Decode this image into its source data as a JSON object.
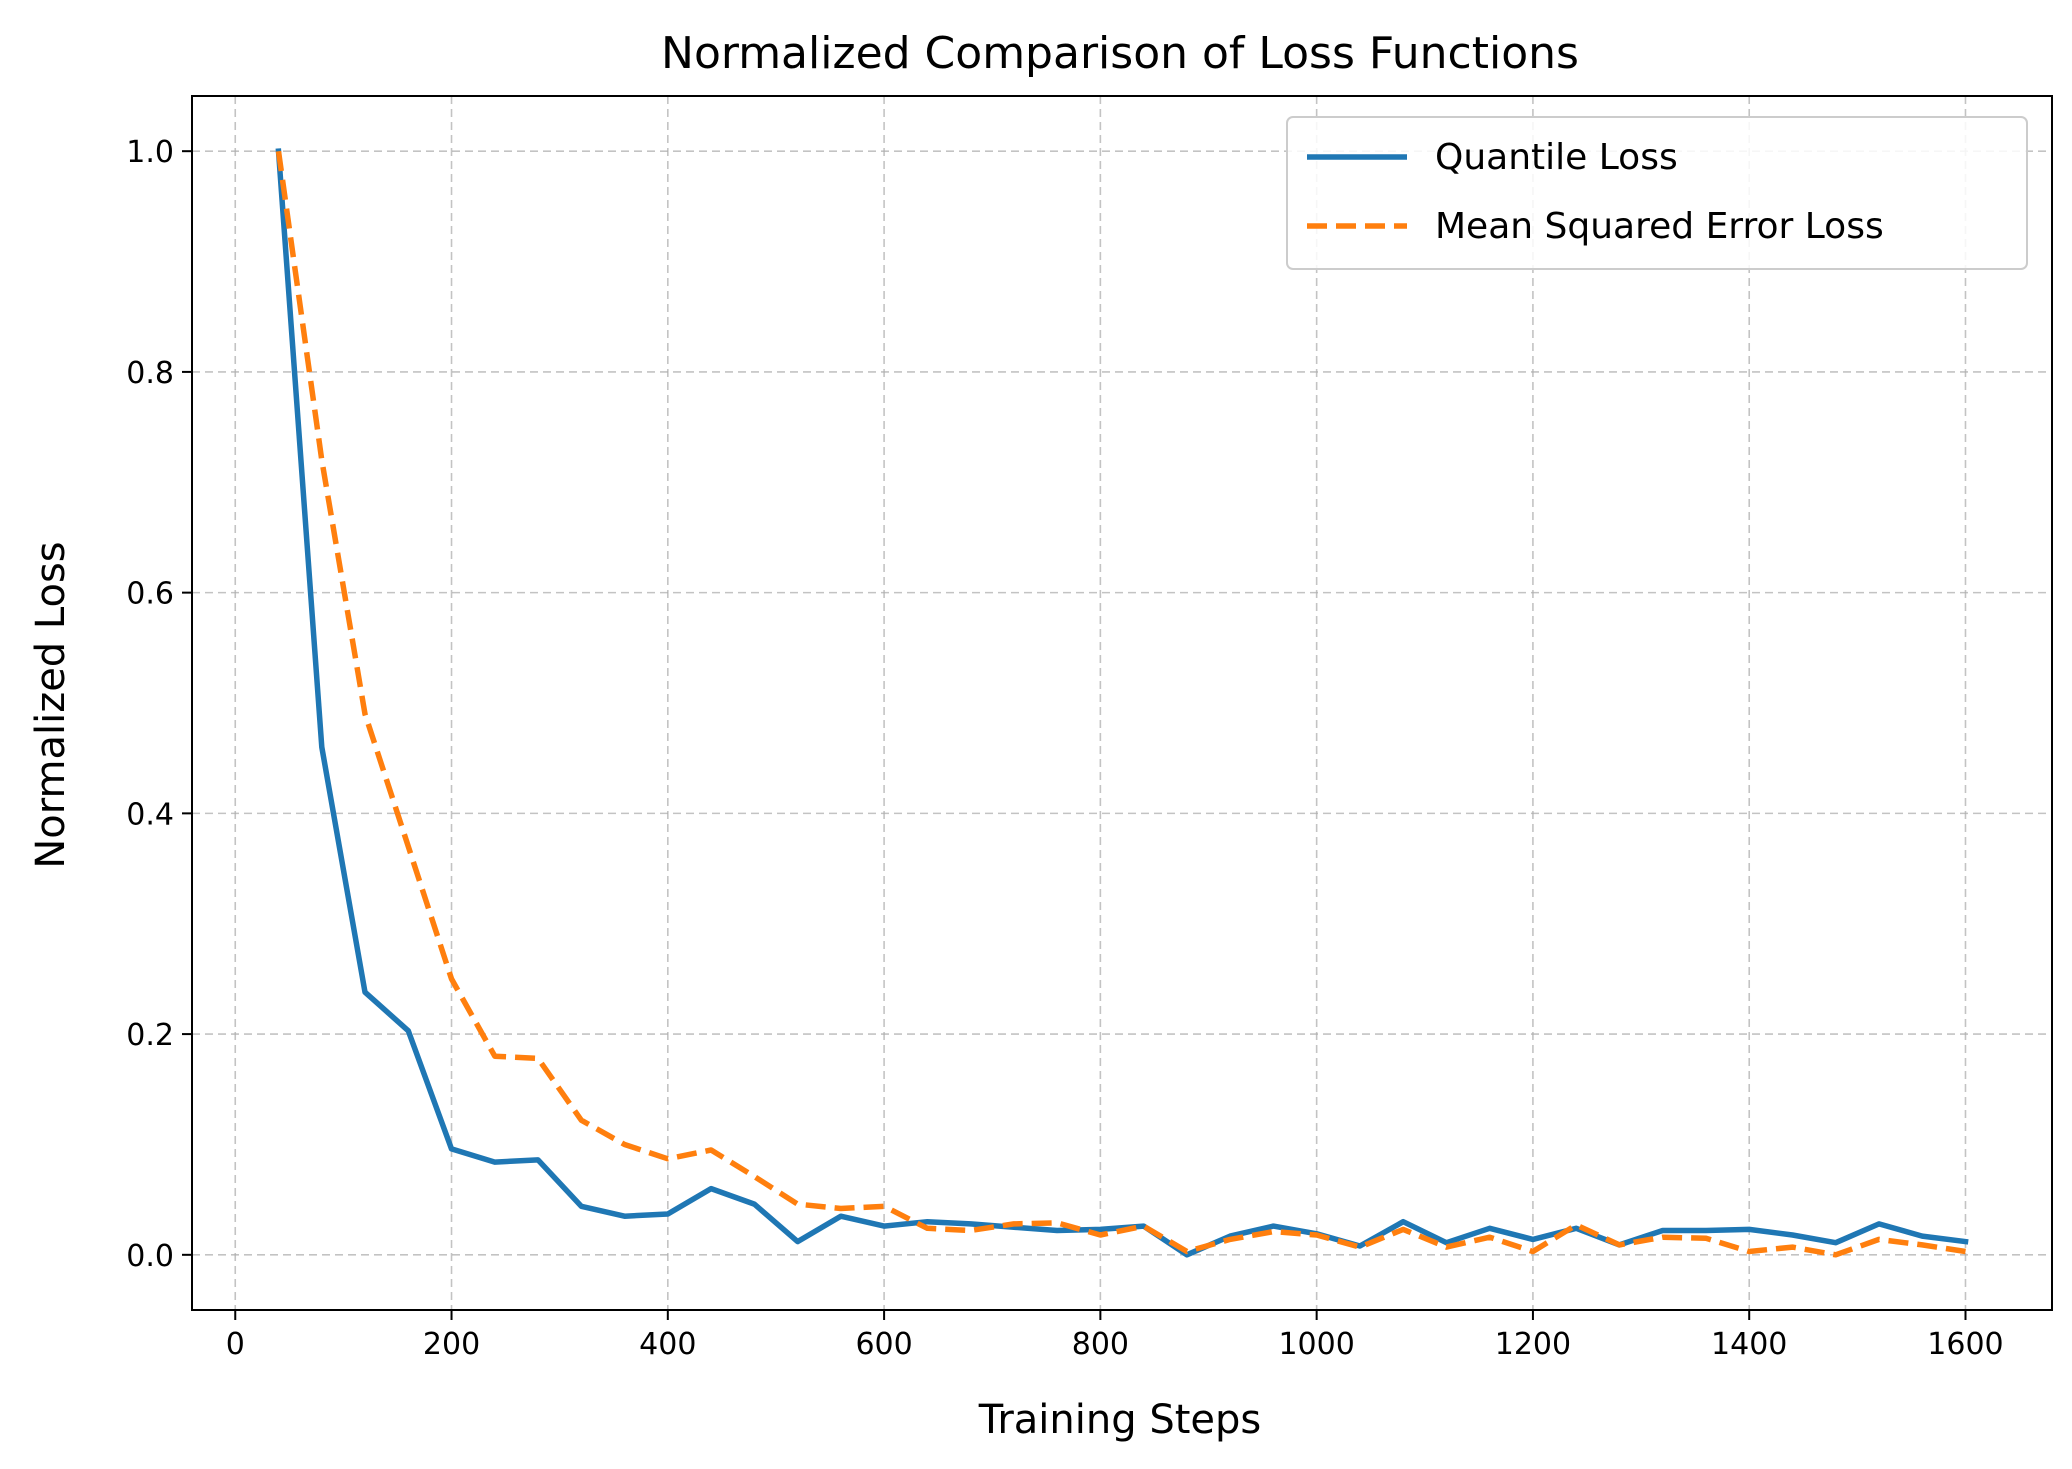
{
  "chart_data": {
    "type": "line",
    "title": "Normalized Comparison of Loss Functions",
    "xlabel": "Training Steps",
    "ylabel": "Normalized Loss",
    "xlim": [
      -40,
      1680
    ],
    "ylim": [
      -0.05,
      1.05
    ],
    "xticks": [
      0,
      200,
      400,
      600,
      800,
      1000,
      1200,
      1400,
      1600
    ],
    "xtick_labels": [
      "0",
      "200",
      "400",
      "600",
      "800",
      "1000",
      "1200",
      "1400",
      "1600"
    ],
    "yticks": [
      0.0,
      0.2,
      0.4,
      0.6,
      0.8,
      1.0
    ],
    "ytick_labels": [
      "0.0",
      "0.2",
      "0.4",
      "0.6",
      "0.8",
      "1.0"
    ],
    "grid": true,
    "legend_position": "top-right",
    "x": [
      40,
      80,
      120,
      160,
      200,
      240,
      280,
      320,
      360,
      400,
      440,
      480,
      520,
      560,
      600,
      640,
      680,
      720,
      760,
      800,
      840,
      880,
      920,
      960,
      1000,
      1040,
      1080,
      1120,
      1160,
      1200,
      1240,
      1280,
      1320,
      1360,
      1400,
      1440,
      1480,
      1520,
      1560,
      1600
    ],
    "series": [
      {
        "name": "Quantile Loss",
        "color": "#1f77b4",
        "linestyle": "solid",
        "values": [
          1.0,
          0.46,
          0.238,
          0.203,
          0.096,
          0.084,
          0.086,
          0.044,
          0.035,
          0.037,
          0.06,
          0.046,
          0.012,
          0.035,
          0.026,
          0.03,
          0.028,
          0.025,
          0.022,
          0.023,
          0.026,
          0.0,
          0.017,
          0.026,
          0.019,
          0.008,
          0.03,
          0.011,
          0.024,
          0.014,
          0.024,
          0.009,
          0.022,
          0.022,
          0.023,
          0.018,
          0.011,
          0.028,
          0.017,
          0.012
        ]
      },
      {
        "name": "Mean Squared Error Loss",
        "color": "#ff7f0e",
        "linestyle": "dashed",
        "values": [
          1.0,
          0.72,
          0.49,
          0.37,
          0.25,
          0.18,
          0.178,
          0.122,
          0.1,
          0.087,
          0.095,
          0.071,
          0.046,
          0.042,
          0.044,
          0.024,
          0.022,
          0.028,
          0.029,
          0.018,
          0.026,
          0.003,
          0.014,
          0.021,
          0.018,
          0.007,
          0.023,
          0.007,
          0.016,
          0.003,
          0.027,
          0.009,
          0.016,
          0.015,
          0.003,
          0.007,
          0.0,
          0.014,
          0.009,
          0.003
        ]
      }
    ]
  }
}
